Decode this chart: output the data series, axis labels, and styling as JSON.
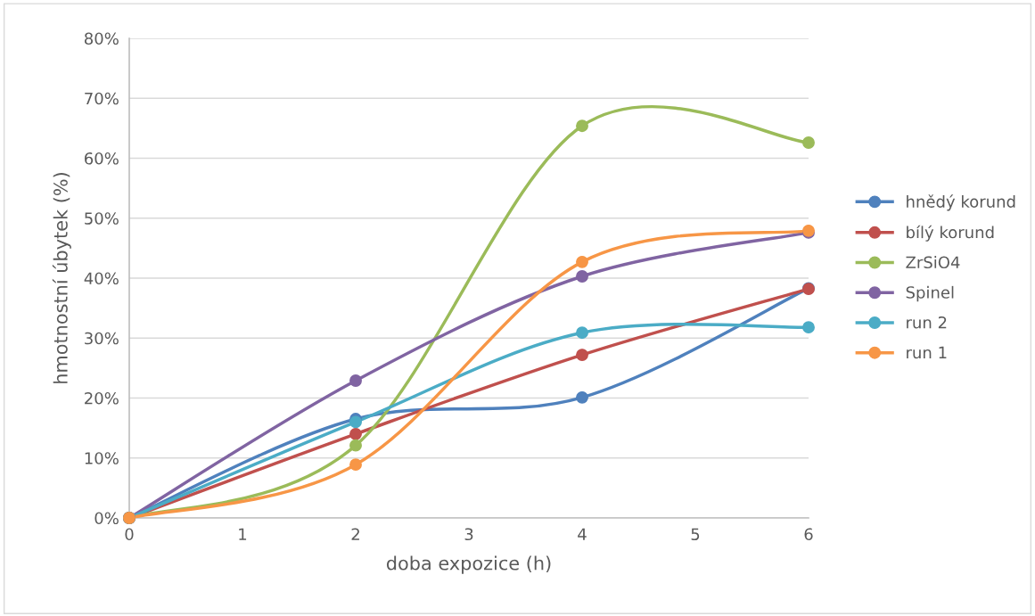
{
  "chart_data": {
    "type": "line",
    "xlabel": "doba expozice (h)",
    "ylabel": "hmotnostní úbytek (%)",
    "x": [
      0,
      2,
      4,
      6
    ],
    "xlim": [
      0,
      6
    ],
    "xticks": [
      0,
      1,
      2,
      3,
      4,
      5,
      6
    ],
    "ylim": [
      0,
      80
    ],
    "yticks": [
      {
        "value": 0,
        "label": "0%"
      },
      {
        "value": 10,
        "label": "10%"
      },
      {
        "value": 20,
        "label": "20%"
      },
      {
        "value": 30,
        "label": "30%"
      },
      {
        "value": 40,
        "label": "40%"
      },
      {
        "value": 50,
        "label": "50%"
      },
      {
        "value": 60,
        "label": "60%"
      },
      {
        "value": 70,
        "label": "70%"
      },
      {
        "value": 80,
        "label": "80%"
      }
    ],
    "grid": "y",
    "legend": "right",
    "marker": "circle",
    "line_style": "solid",
    "series": [
      {
        "name": "hnědý korund",
        "color": "#4f81bd",
        "values": [
          0,
          16.5,
          20.1,
          38.3
        ]
      },
      {
        "name": "bílý korund",
        "color": "#c0504d",
        "values": [
          0,
          14.0,
          27.2,
          38.2
        ]
      },
      {
        "name": "ZrSiO4",
        "color": "#9bbb59",
        "values": [
          0,
          12.1,
          65.4,
          62.6
        ]
      },
      {
        "name": "Spinel",
        "color": "#8064a2",
        "values": [
          0,
          22.9,
          40.3,
          47.6
        ]
      },
      {
        "name": "run 2",
        "color": "#4bacc6",
        "values": [
          0,
          16.0,
          30.9,
          31.8
        ]
      },
      {
        "name": "run 1",
        "color": "#f79646",
        "values": [
          0,
          8.9,
          42.7,
          47.9
        ]
      }
    ]
  }
}
